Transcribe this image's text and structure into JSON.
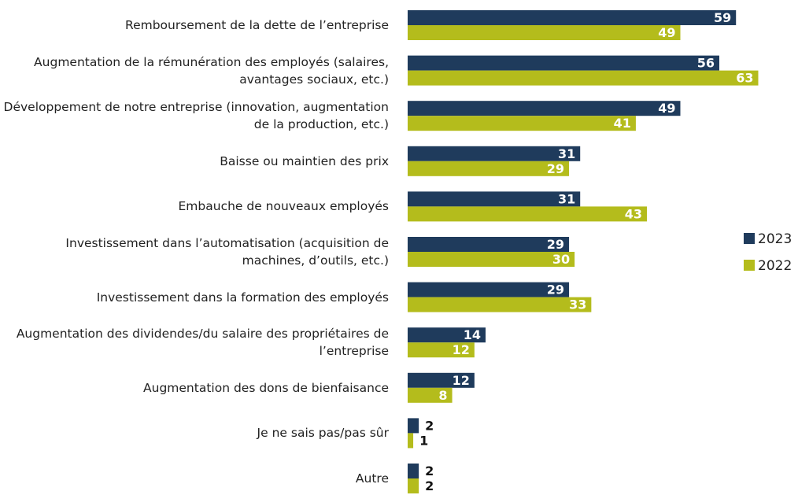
{
  "chart_data": {
    "type": "hbar",
    "categories": [
      "Remboursement de la dette de l’entreprise",
      "Augmentation de la rémunération des employés (salaires, avantages sociaux, etc.)",
      "Développement de notre entreprise (innovation, augmentation de la production, etc.)",
      "Baisse ou maintien des prix",
      "Embauche de nouveaux employés",
      "Investissement dans l’automatisation (acquisition de machines, d’outils, etc.)",
      "Investissement dans la formation des employés",
      "Augmentation des dividendes/du salaire des propriétaires de l’entreprise",
      "Augmentation des dons de bienfaisance",
      "Je ne sais pas/pas sûr",
      "Autre"
    ],
    "series": [
      {
        "name": "2023",
        "color": "#1f3b5c",
        "values": [
          59,
          56,
          49,
          31,
          31,
          29,
          29,
          14,
          12,
          2,
          2
        ]
      },
      {
        "name": "2022",
        "color": "#b4bc1c",
        "values": [
          49,
          63,
          41,
          29,
          43,
          30,
          33,
          12,
          8,
          1,
          2
        ]
      }
    ],
    "xlim": [
      0,
      70
    ],
    "legend": "right"
  }
}
